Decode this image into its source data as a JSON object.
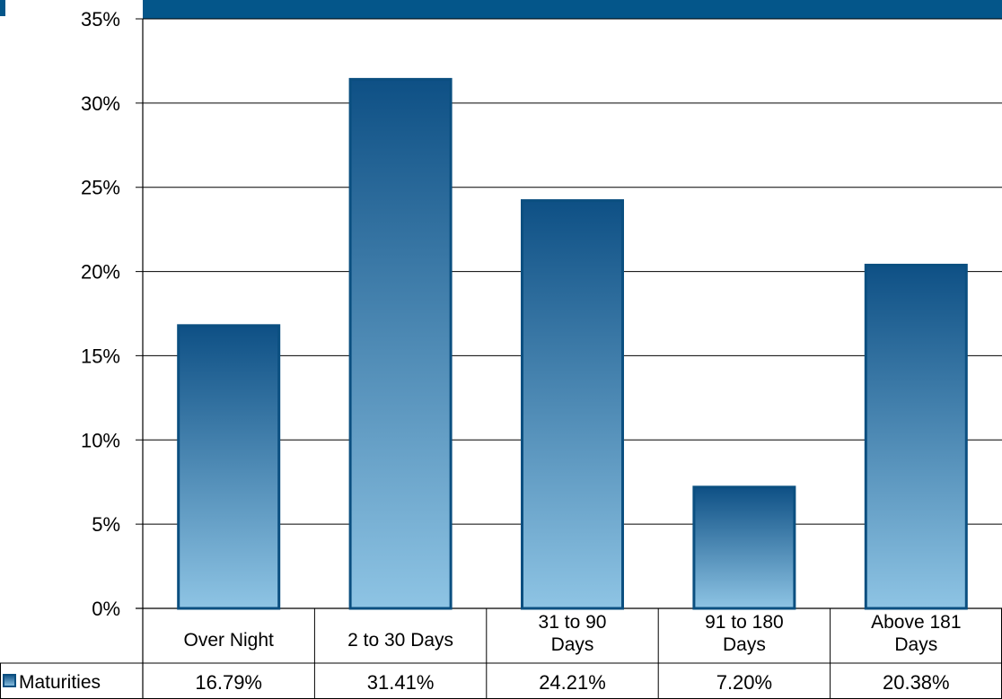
{
  "colors": {
    "header_bar": "#04568a",
    "bar_top": "#0e5085",
    "bar_bottom": "#8ec4e4",
    "bar_border": "#0b4f80",
    "gridline": "#000000"
  },
  "chart_data": {
    "type": "bar",
    "categories": [
      [
        "Over Night"
      ],
      [
        "2 to 30 Days"
      ],
      [
        "31 to 90",
        "Days"
      ],
      [
        "91 to 180",
        "Days"
      ],
      [
        "Above 181",
        "Days"
      ]
    ],
    "series": [
      {
        "name": "Maturities",
        "values": [
          16.79,
          31.41,
          24.21,
          7.2,
          20.38
        ],
        "value_labels": [
          "16.79%",
          "31.41%",
          "24.21%",
          "7.20%",
          "20.38%"
        ]
      }
    ],
    "y_ticks": [
      "0%",
      "5%",
      "10%",
      "15%",
      "20%",
      "25%",
      "30%",
      "35%"
    ],
    "ylim": [
      0,
      35
    ],
    "grid": true,
    "data_table": true,
    "legend": "in data table"
  }
}
